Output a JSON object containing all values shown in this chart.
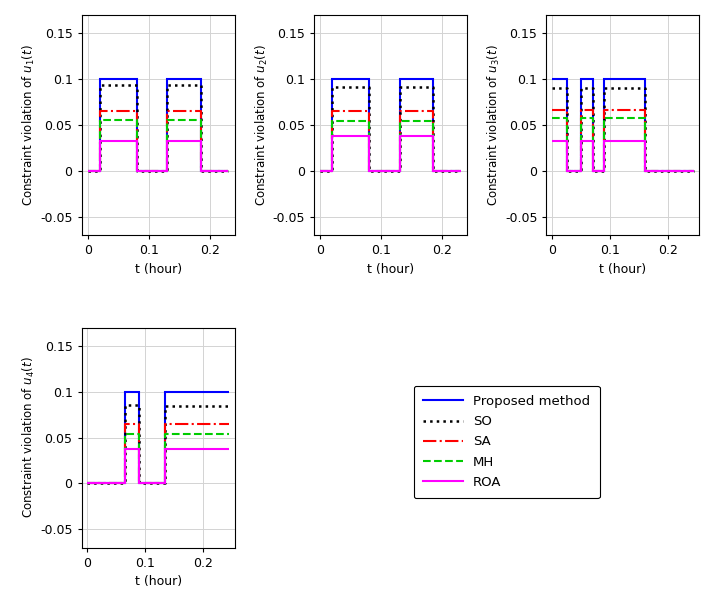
{
  "subplots": [
    {
      "ylabel": "Constraint violation of $u_1(t)$",
      "xlabel": "t (hour)",
      "xlim": [
        -0.01,
        0.24
      ],
      "ylim": [
        -0.07,
        0.17
      ],
      "yticks": [
        -0.05,
        0,
        0.05,
        0.1,
        0.15
      ],
      "xticks": [
        0,
        0.1,
        0.2
      ],
      "series": {
        "proposed": {
          "x": [
            0,
            0.02,
            0.02,
            0.08,
            0.08,
            0.13,
            0.13,
            0.185,
            0.185,
            0.23
          ],
          "y": [
            0,
            0,
            0.1,
            0.1,
            0,
            0,
            0.1,
            0.1,
            0,
            0
          ]
        },
        "SO": {
          "x": [
            0,
            0.02,
            0.02,
            0.08,
            0.08,
            0.13,
            0.13,
            0.185,
            0.185,
            0.23
          ],
          "y": [
            0,
            0,
            0.094,
            0.094,
            0,
            0,
            0.094,
            0.094,
            0,
            0
          ]
        },
        "SA": {
          "x": [
            0,
            0.02,
            0.02,
            0.08,
            0.08,
            0.13,
            0.13,
            0.185,
            0.185,
            0.23
          ],
          "y": [
            0,
            0,
            0.065,
            0.065,
            0,
            0,
            0.065,
            0.065,
            0,
            0
          ]
        },
        "MH": {
          "x": [
            0,
            0.02,
            0.02,
            0.08,
            0.08,
            0.13,
            0.13,
            0.185,
            0.185,
            0.23
          ],
          "y": [
            0,
            0,
            0.056,
            0.056,
            0,
            0,
            0.056,
            0.056,
            0,
            0
          ]
        },
        "ROA": {
          "x": [
            0,
            0.02,
            0.02,
            0.08,
            0.08,
            0.13,
            0.13,
            0.185,
            0.185,
            0.23
          ],
          "y": [
            0,
            0,
            0.033,
            0.033,
            0,
            0,
            0.033,
            0.033,
            0,
            0
          ]
        }
      }
    },
    {
      "ylabel": "Constraint violation of $u_2(t)$",
      "xlabel": "t (hour)",
      "xlim": [
        -0.01,
        0.24
      ],
      "ylim": [
        -0.07,
        0.17
      ],
      "yticks": [
        -0.05,
        0,
        0.05,
        0.1,
        0.15
      ],
      "xticks": [
        0,
        0.1,
        0.2
      ],
      "series": {
        "proposed": {
          "x": [
            0,
            0.02,
            0.02,
            0.08,
            0.08,
            0.13,
            0.13,
            0.185,
            0.185,
            0.23
          ],
          "y": [
            0,
            0,
            0.1,
            0.1,
            0,
            0,
            0.1,
            0.1,
            0,
            0
          ]
        },
        "SO": {
          "x": [
            0,
            0.02,
            0.02,
            0.08,
            0.08,
            0.13,
            0.13,
            0.185,
            0.185,
            0.23
          ],
          "y": [
            0,
            0,
            0.092,
            0.092,
            0,
            0,
            0.092,
            0.092,
            0,
            0
          ]
        },
        "SA": {
          "x": [
            0,
            0.02,
            0.02,
            0.08,
            0.08,
            0.13,
            0.13,
            0.185,
            0.185,
            0.23
          ],
          "y": [
            0,
            0,
            0.065,
            0.065,
            0,
            0,
            0.065,
            0.065,
            0,
            0
          ]
        },
        "MH": {
          "x": [
            0,
            0.02,
            0.02,
            0.08,
            0.08,
            0.13,
            0.13,
            0.185,
            0.185,
            0.23
          ],
          "y": [
            0,
            0,
            0.055,
            0.055,
            0,
            0,
            0.055,
            0.055,
            0,
            0
          ]
        },
        "ROA": {
          "x": [
            0,
            0.02,
            0.02,
            0.08,
            0.08,
            0.13,
            0.13,
            0.185,
            0.185,
            0.23
          ],
          "y": [
            0,
            0,
            0.038,
            0.038,
            0,
            0,
            0.038,
            0.038,
            0,
            0
          ]
        }
      }
    },
    {
      "ylabel": "Constraint violation of $u_3(t)$",
      "xlabel": "t (hour)",
      "xlim": [
        -0.01,
        0.255
      ],
      "ylim": [
        -0.07,
        0.17
      ],
      "yticks": [
        -0.05,
        0,
        0.05,
        0.1,
        0.15
      ],
      "xticks": [
        0,
        0.1,
        0.2
      ],
      "series": {
        "proposed": {
          "x": [
            0,
            0.025,
            0.025,
            0.05,
            0.05,
            0.07,
            0.07,
            0.09,
            0.09,
            0.16,
            0.16,
            0.245
          ],
          "y": [
            0.1,
            0.1,
            0,
            0,
            0.1,
            0.1,
            0,
            0,
            0.1,
            0.1,
            0,
            0
          ]
        },
        "SO": {
          "x": [
            0,
            0.025,
            0.025,
            0.05,
            0.05,
            0.07,
            0.07,
            0.09,
            0.09,
            0.16,
            0.16,
            0.245
          ],
          "y": [
            0.09,
            0.09,
            0,
            0,
            0.09,
            0.09,
            0,
            0,
            0.09,
            0.09,
            0,
            0
          ]
        },
        "SA": {
          "x": [
            0,
            0.025,
            0.025,
            0.05,
            0.05,
            0.07,
            0.07,
            0.09,
            0.09,
            0.16,
            0.16,
            0.245
          ],
          "y": [
            0.067,
            0.067,
            0,
            0,
            0.067,
            0.067,
            0,
            0,
            0.067,
            0.067,
            0,
            0
          ]
        },
        "MH": {
          "x": [
            0,
            0.025,
            0.025,
            0.05,
            0.05,
            0.07,
            0.07,
            0.09,
            0.09,
            0.16,
            0.16,
            0.245
          ],
          "y": [
            0.058,
            0.058,
            0,
            0,
            0.058,
            0.058,
            0,
            0,
            0.058,
            0.058,
            0,
            0
          ]
        },
        "ROA": {
          "x": [
            0,
            0.025,
            0.025,
            0.05,
            0.05,
            0.07,
            0.07,
            0.09,
            0.09,
            0.16,
            0.16,
            0.245
          ],
          "y": [
            0.033,
            0.033,
            0,
            0,
            0.033,
            0.033,
            0,
            0,
            0.033,
            0.033,
            0,
            0
          ]
        }
      }
    },
    {
      "ylabel": "Constraint violation of $u_4(t)$",
      "xlabel": "t (hour)",
      "xlim": [
        -0.01,
        0.255
      ],
      "ylim": [
        -0.07,
        0.17
      ],
      "yticks": [
        -0.05,
        0,
        0.05,
        0.1,
        0.15
      ],
      "xticks": [
        0,
        0.1,
        0.2
      ],
      "series": {
        "proposed": {
          "x": [
            0,
            0.065,
            0.065,
            0.09,
            0.09,
            0.135,
            0.135,
            0.245
          ],
          "y": [
            0,
            0,
            0.1,
            0.1,
            0,
            0,
            0.1,
            0.1
          ]
        },
        "SO": {
          "x": [
            0,
            0.065,
            0.065,
            0.09,
            0.09,
            0.135,
            0.135,
            0.245
          ],
          "y": [
            0,
            0,
            0.086,
            0.086,
            0,
            0,
            0.084,
            0.084
          ]
        },
        "SA": {
          "x": [
            0,
            0.065,
            0.065,
            0.09,
            0.09,
            0.135,
            0.135,
            0.245
          ],
          "y": [
            0,
            0,
            0.065,
            0.065,
            0,
            0,
            0.065,
            0.065
          ]
        },
        "MH": {
          "x": [
            0,
            0.065,
            0.065,
            0.09,
            0.09,
            0.135,
            0.135,
            0.245
          ],
          "y": [
            0,
            0,
            0.054,
            0.054,
            0,
            0,
            0.054,
            0.054
          ]
        },
        "ROA": {
          "x": [
            0,
            0.065,
            0.065,
            0.09,
            0.09,
            0.135,
            0.135,
            0.245
          ],
          "y": [
            0,
            0,
            0.038,
            0.038,
            0,
            0,
            0.038,
            0.038
          ]
        }
      }
    }
  ],
  "line_styles": {
    "proposed": {
      "color": "#0000FF",
      "linestyle": "-",
      "linewidth": 1.5
    },
    "SO": {
      "color": "#000000",
      "linestyle": ":",
      "linewidth": 1.8
    },
    "SA": {
      "color": "#FF0000",
      "linestyle": "-.",
      "linewidth": 1.5
    },
    "MH": {
      "color": "#00CC00",
      "linestyle": "--",
      "linewidth": 1.5
    },
    "ROA": {
      "color": "#FF00FF",
      "linestyle": "-",
      "linewidth": 1.5
    }
  },
  "legend_labels": {
    "proposed": "Proposed method",
    "SO": "SO",
    "SA": "SA",
    "MH": "MH",
    "ROA": "ROA"
  },
  "series_order": [
    "proposed",
    "SO",
    "SA",
    "MH",
    "ROA"
  ],
  "ytick_labels": [
    "-0.05",
    "0",
    "0.05",
    "0.1",
    "0.15"
  ],
  "xtick_labels": [
    "0",
    "0.1",
    "0.2"
  ],
  "grid_color": "#d3d3d3",
  "font_size": 9,
  "ylabel_font_size": 8.5,
  "legend_font_size": 9.5
}
